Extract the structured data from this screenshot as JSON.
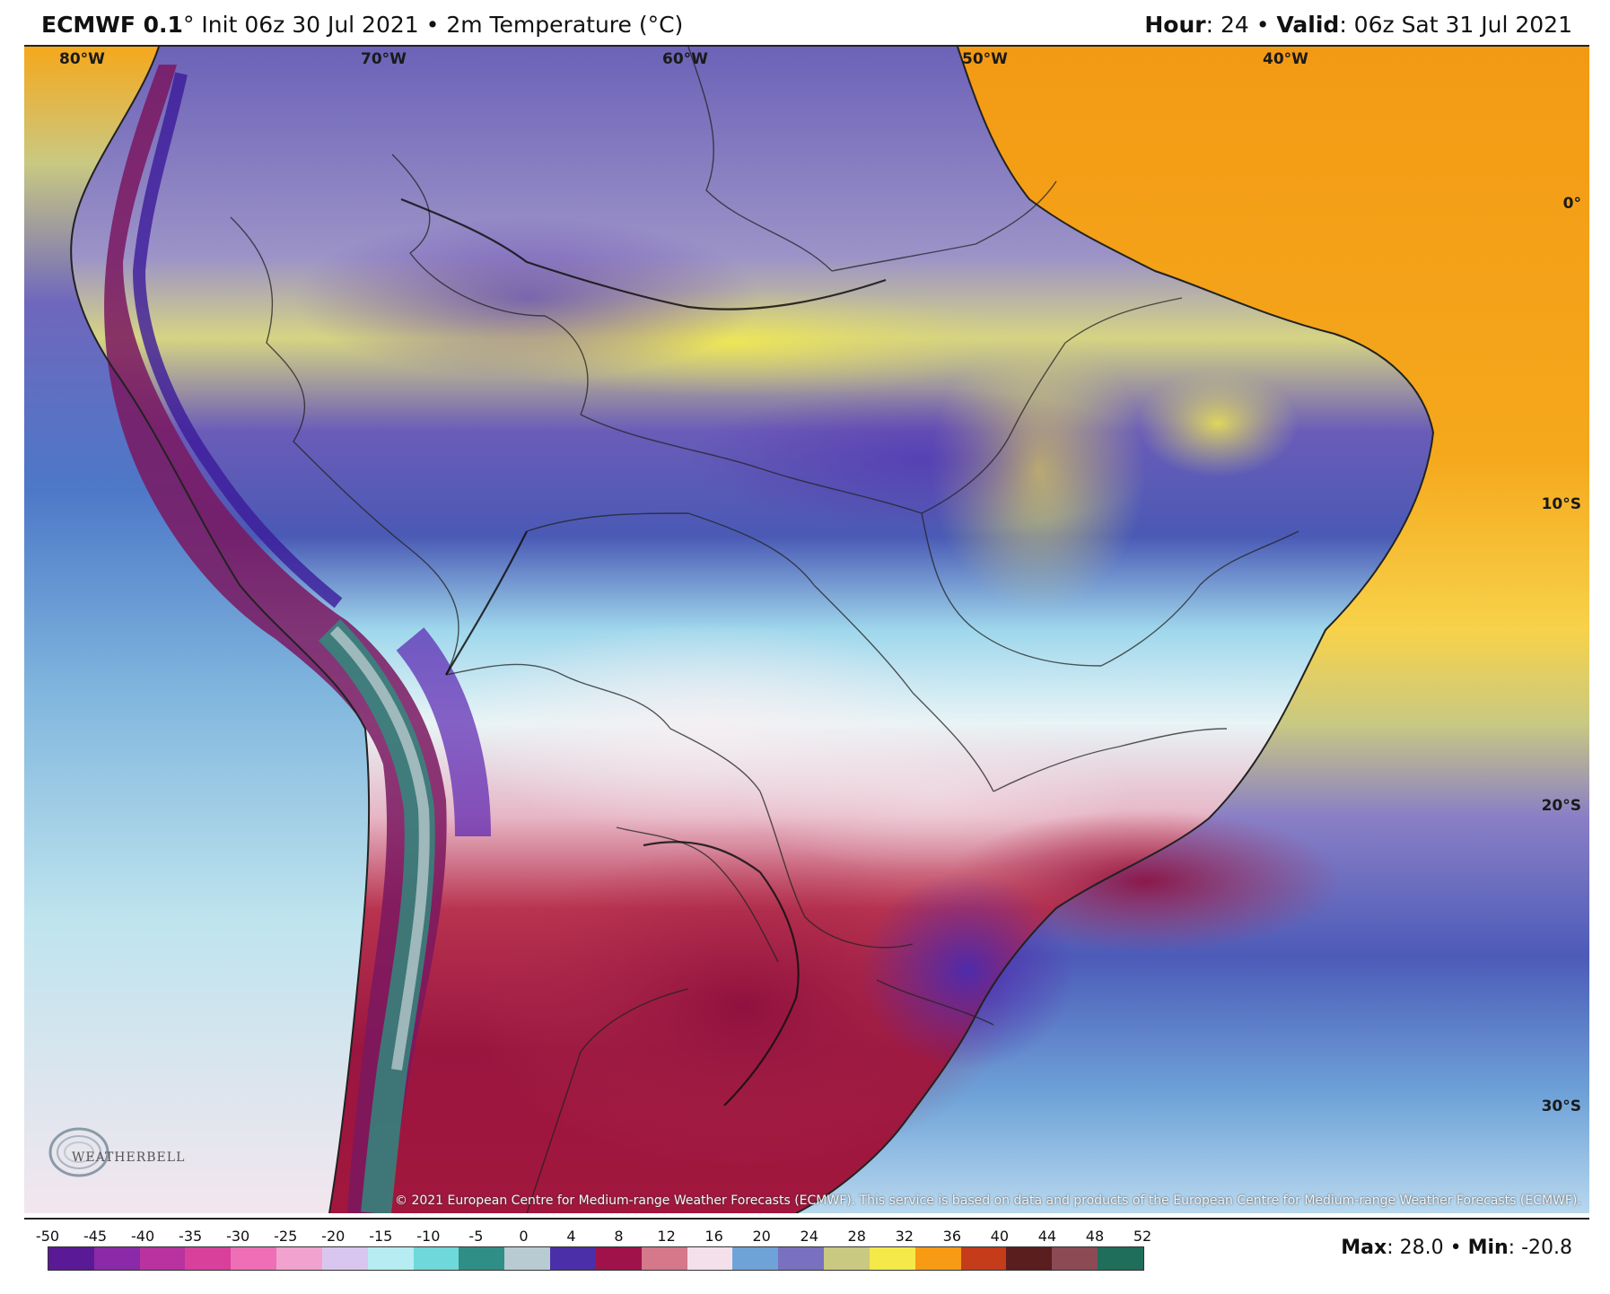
{
  "header": {
    "model": "ECMWF 0.1",
    "degree": "°",
    "init": " Init 06z 30 Jul 2021 • 2m Temperature (°C)",
    "hour_label": "Hour",
    "hour_value": ": 24 • ",
    "valid_label": "Valid",
    "valid_value": ": 06z Sat 31 Jul 2021"
  },
  "map": {
    "lon_labels": [
      "80°W",
      "70°W",
      "60°W",
      "50°W",
      "40°W"
    ],
    "lat_labels": [
      "0°",
      "10°S",
      "20°S",
      "30°S"
    ],
    "copyright": "© 2021 European Centre for Medium-range Weather Forecasts (ECMWF). This service is based on data and products of the European Centre for Medium-range Weather Forecasts (ECMWF).",
    "logo_text": "WEATHERBELL"
  },
  "colorbar": {
    "ticks": [
      "-50",
      "-45",
      "-40",
      "-35",
      "-30",
      "-25",
      "-20",
      "-15",
      "-10",
      "-5",
      "0",
      "4",
      "8",
      "12",
      "16",
      "20",
      "24",
      "28",
      "32",
      "36",
      "40",
      "44",
      "48",
      "52"
    ],
    "colors": [
      "#5a1a96",
      "#8a2aa8",
      "#b8339f",
      "#d8409c",
      "#ee6fb6",
      "#f2a2cf",
      "#d9c6ee",
      "#b7ecf2",
      "#6fd8da",
      "#2f8f86",
      "#b9cbd2",
      "#4a2fa8",
      "#a0134a",
      "#d4788a",
      "#f3e0ea",
      "#6fa3d8",
      "#7a70c0",
      "#c9c982",
      "#f5e94a",
      "#f79a14",
      "#c43c1a",
      "#5a1e1e",
      "#8c4a54",
      "#1f6e5a"
    ]
  },
  "stats": {
    "max_label": "Max",
    "max_value": ": 28.0 • ",
    "min_label": "Min",
    "min_value": ": -20.8"
  }
}
